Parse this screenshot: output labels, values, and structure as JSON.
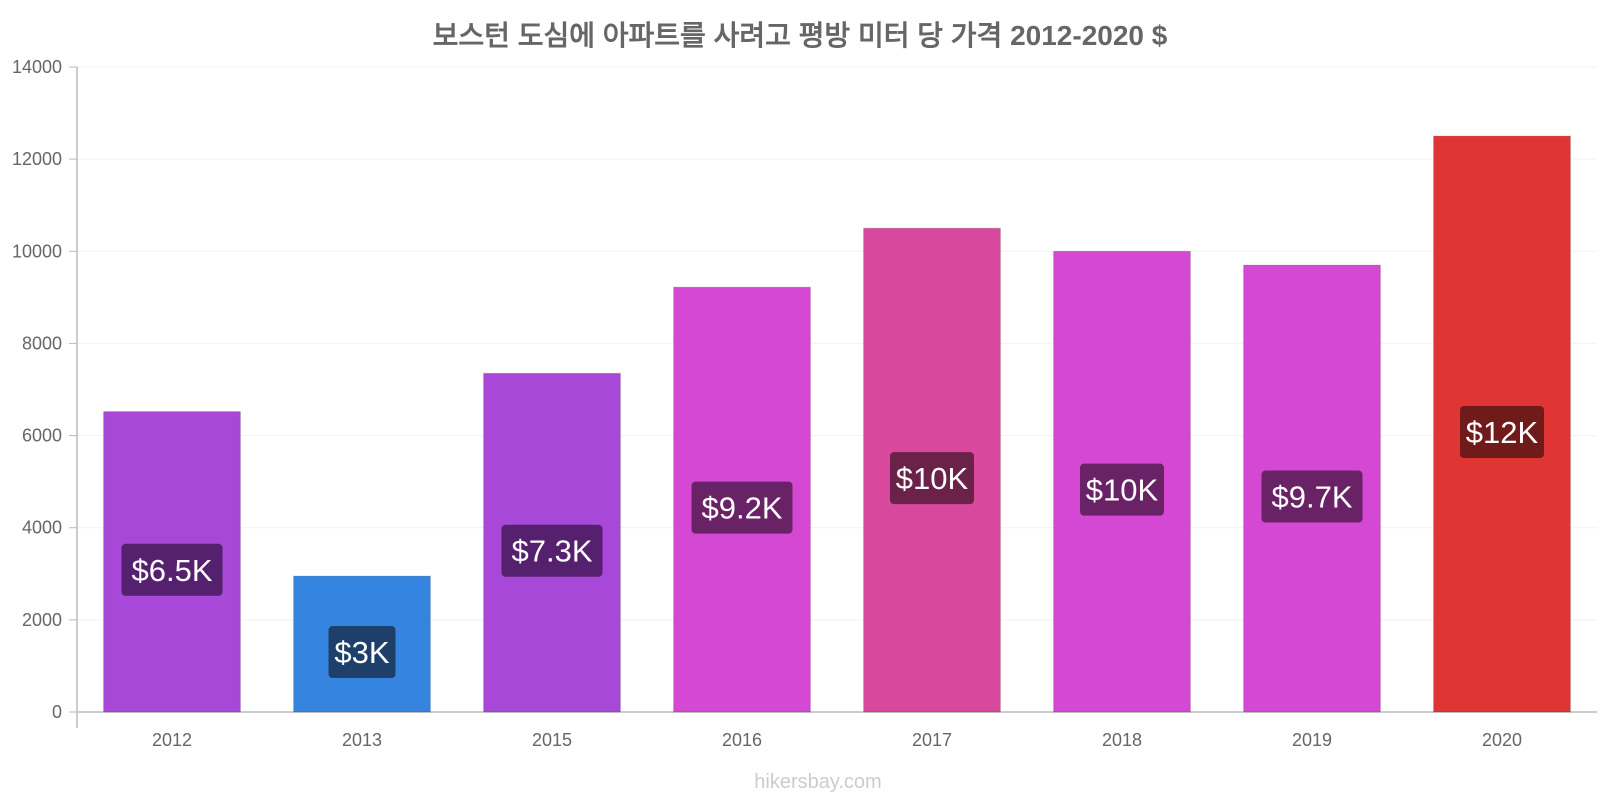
{
  "chart_data": {
    "type": "bar",
    "title": "보스턴 도심에 아파트를 사려고 평방 미터 당 가격 2012-2020 $",
    "xlabel": "",
    "ylabel": "",
    "categories": [
      "2012",
      "2013",
      "2015",
      "2016",
      "2017",
      "2018",
      "2019",
      "2020"
    ],
    "values": [
      6520,
      2950,
      7350,
      9220,
      10500,
      10000,
      9700,
      12500
    ],
    "data_labels": [
      "$6.5K",
      "$3K",
      "$7.3K",
      "$9.2K",
      "$10K",
      "$10K",
      "$9.7K",
      "$12K"
    ],
    "bar_colors": [
      "#a848d8",
      "#3584e0",
      "#a848d8",
      "#d548d4",
      "#d8489c",
      "#d548d4",
      "#d548d4",
      "#e03535"
    ],
    "label_box_colors": [
      "#55206e",
      "#1f3f6b",
      "#55206e",
      "#6a2266",
      "#6a2249",
      "#6a2266",
      "#6a2266",
      "#701a1a"
    ],
    "ylim": [
      0,
      14000
    ],
    "yticks": [
      "0",
      "2000",
      "4000",
      "6000",
      "8000",
      "10000",
      "12000",
      "14000"
    ],
    "grid": true,
    "legend": "none"
  },
  "watermark": "hikersbay.com"
}
